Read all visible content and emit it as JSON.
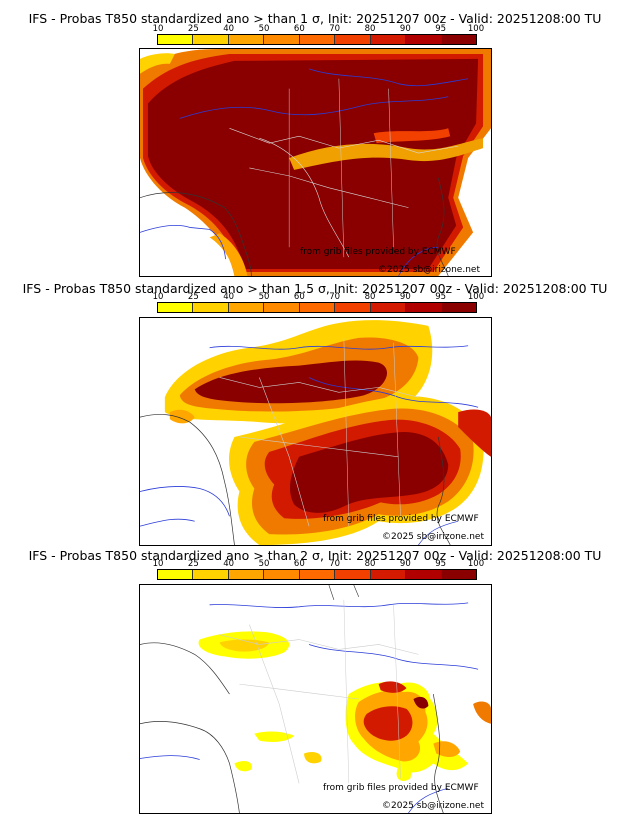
{
  "legend": {
    "ticks": [
      "10",
      "25",
      "40",
      "50",
      "60",
      "70",
      "80",
      "90",
      "95",
      "100"
    ],
    "colors": [
      "#ffff00",
      "#ffd200",
      "#ffa600",
      "#ff8a00",
      "#ff6a00",
      "#f24000",
      "#d41a00",
      "#b00000",
      "#8a0000"
    ]
  },
  "panels": [
    {
      "title": "IFS - Probas T850  standardized ano > than 1 σ, Init: 20251207 00z - Valid: 20251208:00 TU",
      "credit": "from grib files provided by ECMWF",
      "copyright": "©2025 sb@irizone.net"
    },
    {
      "title": "IFS - Probas T850  standardized ano > than 1.5 σ, Init: 20251207 00z - Valid: 20251208:00 TU",
      "credit": "from grib files provided by ECMWF",
      "copyright": "©2025 sb@irizone.net"
    },
    {
      "title": "IFS - Probas T850  standardized ano > than 2 σ, Init: 20251207 00z - Valid: 20251208:00 TU",
      "credit": "from grib files provided by ECMWF",
      "copyright": "©2025 sb@irizone.net"
    }
  ]
}
